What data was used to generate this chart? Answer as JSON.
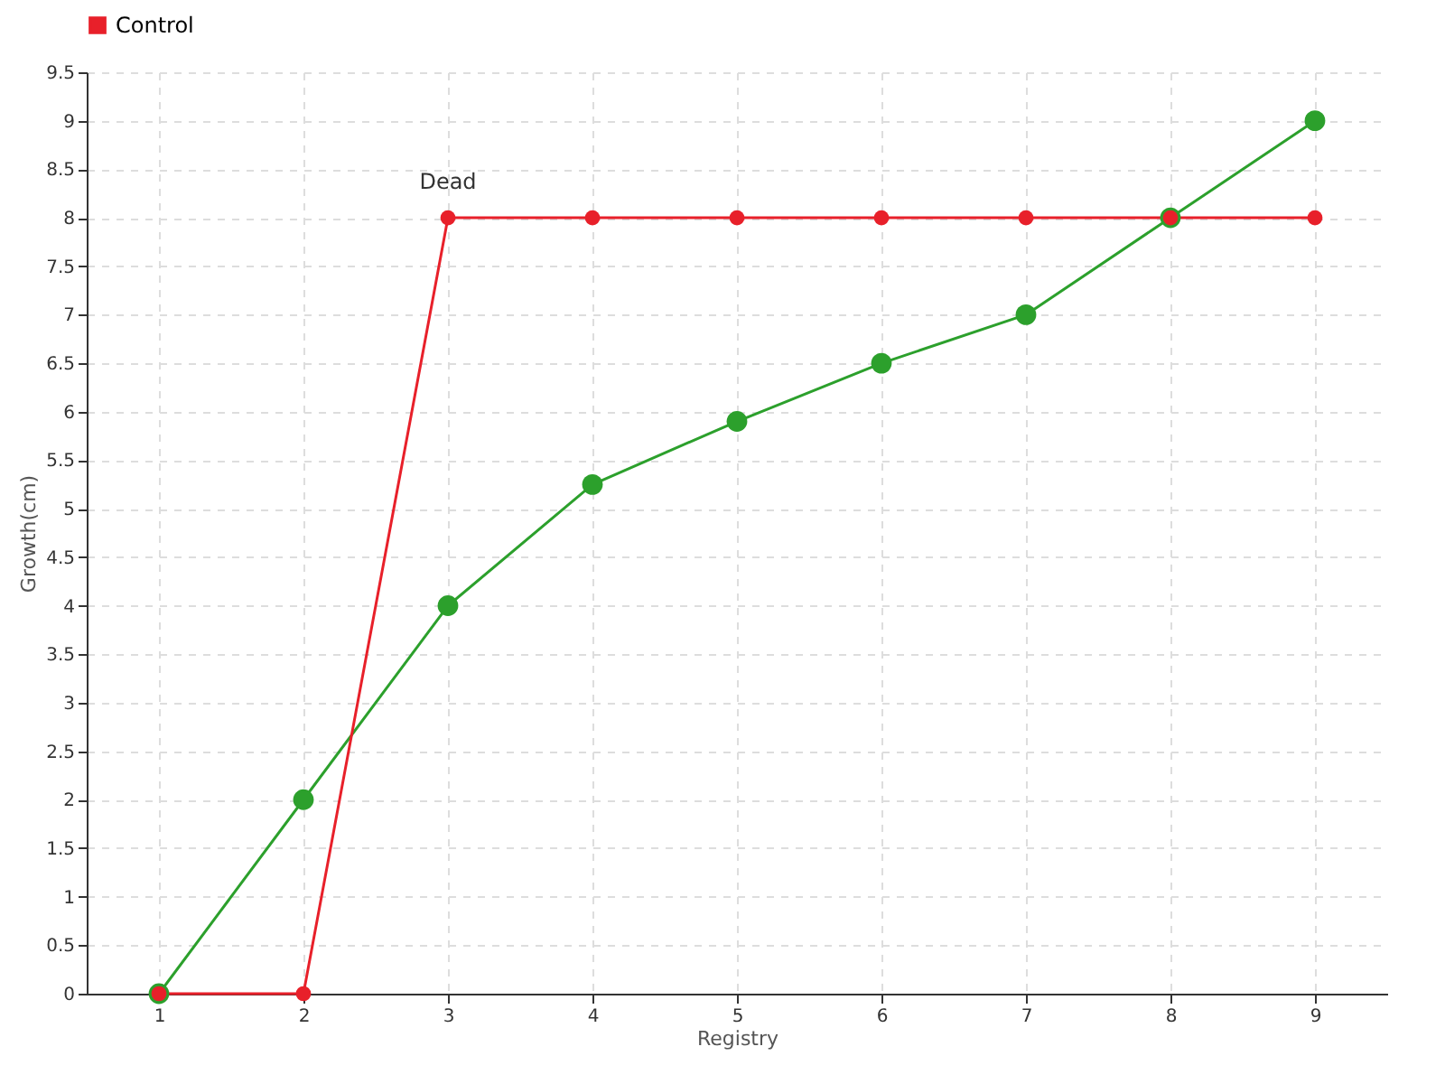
{
  "chart_data": {
    "type": "line",
    "xlabel": "Registry",
    "ylabel": "Growth(cm)",
    "x": [
      1,
      2,
      3,
      4,
      5,
      6,
      7,
      8,
      9
    ],
    "series": [
      {
        "color": "#2ca02c",
        "values": [
          0,
          2,
          4,
          5.25,
          5.9,
          6.5,
          7,
          8,
          9
        ]
      },
      {
        "name": "Control",
        "color": "#e8202a",
        "values": [
          0,
          0,
          8,
          8,
          8,
          8,
          8,
          8,
          8
        ]
      }
    ],
    "xlim": [
      0.5,
      9.5
    ],
    "xticks": [
      1,
      2,
      3,
      4,
      5,
      6,
      7,
      8,
      9
    ],
    "ylim": [
      0,
      9.5
    ],
    "yticks": [
      0,
      0.5,
      1,
      1.5,
      2,
      2.5,
      3,
      3.5,
      4,
      4.5,
      5,
      5.5,
      6,
      6.5,
      7,
      7.5,
      8,
      8.5,
      9,
      9.5
    ],
    "annotations": [
      {
        "text": "Dead",
        "x": 3,
        "y": 8
      }
    ],
    "grid": true,
    "legend": "top left",
    "marker": "circle",
    "line_style": "solid"
  }
}
